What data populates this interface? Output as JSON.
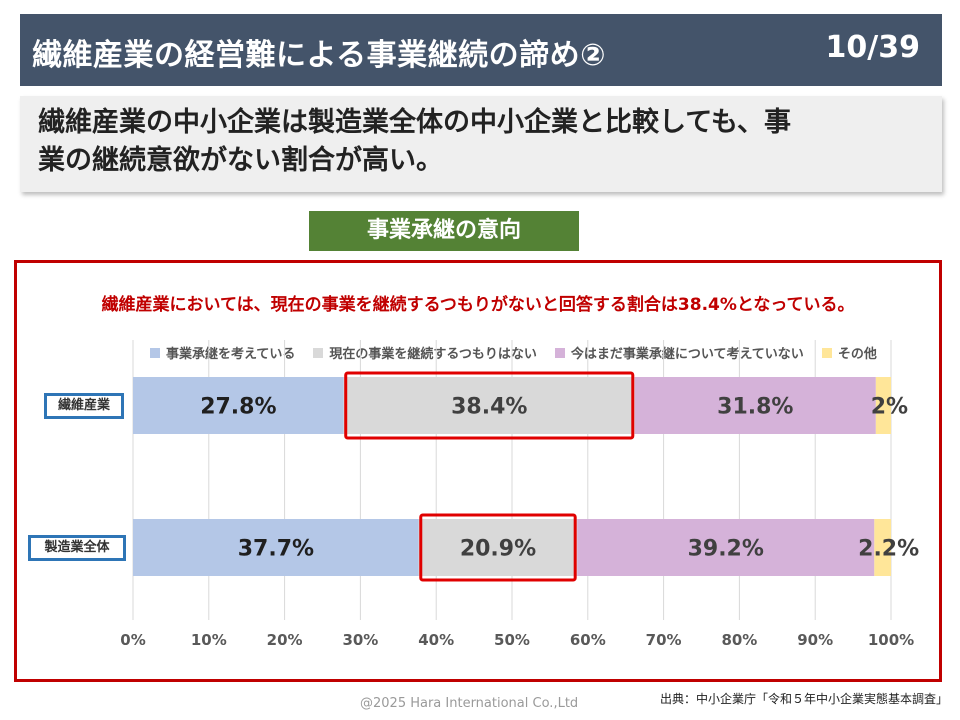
{
  "header": {
    "title": "繊維産業の経営難による事業継続の諦め②",
    "page": "10/39"
  },
  "subtitle": {
    "line1": "繊維産業の中小企業は製造業全体の中小企業と比較しても、事",
    "line2": "業の継続意欲がない割合が高い。"
  },
  "section_label": "事業承継の意向",
  "chart_headline": "繊維産業においては、現在の事業を継続するつもりがないと回答する割合は38.4%となっている。",
  "footer": {
    "copyright": "@2025 Hara International Co.,Ltd",
    "source": "出典：中小企業庁「令和５年中小企業実態基本調査」"
  },
  "chart_data": {
    "type": "bar",
    "orientation": "horizontal",
    "stacked": true,
    "percent_stacked": true,
    "categories": [
      "繊維産業",
      "製造業全体"
    ],
    "series": [
      {
        "name": "事業承継を考えている",
        "values": [
          27.8,
          37.7
        ],
        "labels": [
          "27.8%",
          "37.7%"
        ],
        "color": "#b4c7e7"
      },
      {
        "name": "現在の事業を継続するつもりはない",
        "values": [
          38.4,
          20.9
        ],
        "labels": [
          "38.4%",
          "20.9%"
        ],
        "color": "#d9d9d9"
      },
      {
        "name": "今はまだ事業承継について考えていない",
        "values": [
          31.8,
          39.2
        ],
        "labels": [
          "31.8%",
          "39.2%"
        ],
        "color": "#d5b2d9"
      },
      {
        "name": "その他",
        "values": [
          2.0,
          2.2
        ],
        "labels": [
          "2%",
          "2.2%"
        ],
        "color": "#ffe699"
      }
    ],
    "highlighted_series": "現在の事業を継続するつもりはない",
    "xlim": [
      0,
      100
    ],
    "x_ticks": [
      "0%",
      "10%",
      "20%",
      "30%",
      "40%",
      "50%",
      "60%",
      "70%",
      "80%",
      "90%",
      "100%"
    ],
    "grid": true,
    "legend_position": "top"
  }
}
